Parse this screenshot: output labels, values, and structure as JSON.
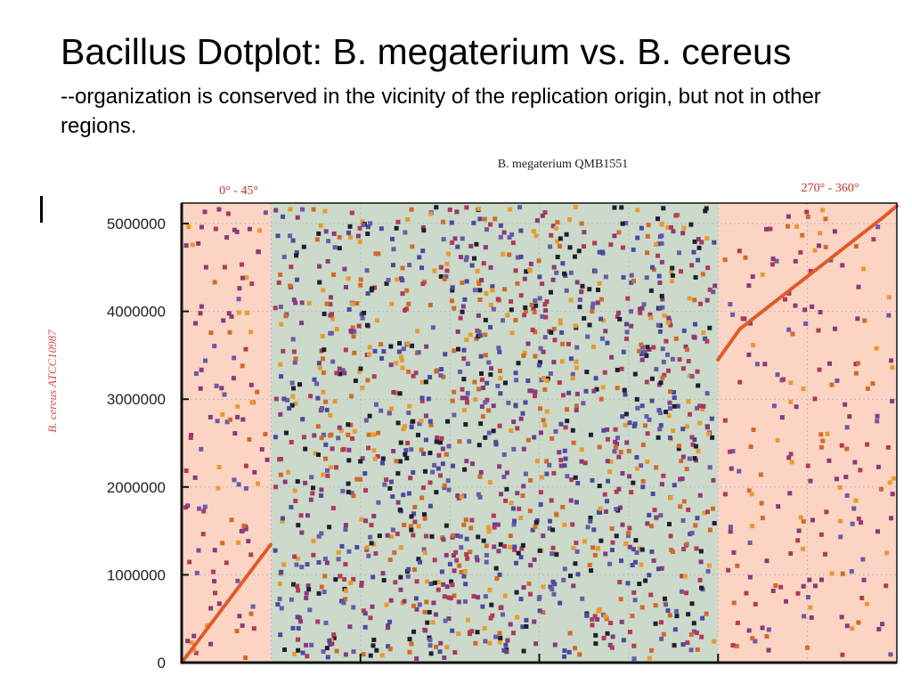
{
  "slide": {
    "title": "Bacillus Dotplot: B. megaterium vs. B. cereus",
    "subtitle": "--organization is conserved in the vicinity of the replication origin, but not in other regions."
  },
  "colors": {
    "conserved_band": "#fcd4c4",
    "variable_band": "#ccdacb",
    "diagonal": "#e05a2a",
    "region_label": "#c8322a",
    "ylabel": "#d04a4a",
    "dot_palette": [
      "#4a4aa0",
      "#6a5aa8",
      "#8a3a7a",
      "#b03a5a",
      "#d06a2a",
      "#e89a30",
      "#1e1e30"
    ]
  },
  "chart_data": {
    "type": "scatter",
    "title": "B. megaterium QMB1551",
    "xlabel": "",
    "ylabel": "B. cereus ATCC10987",
    "yticks": [
      0,
      1000000,
      2000000,
      3000000,
      4000000,
      5000000
    ],
    "ytick_labels": [
      "0",
      "1000000",
      "2000000",
      "3000000",
      "4000000",
      "5000000"
    ],
    "ylim": [
      0,
      5100000
    ],
    "x_unit": "degrees",
    "xlim": [
      0,
      360
    ],
    "regions": [
      {
        "label": "0° - 45°",
        "start": 0,
        "end": 45,
        "highlight": true
      },
      {
        "label": "",
        "start": 45,
        "end": 270,
        "highlight": false
      },
      {
        "label": "270° - 360°",
        "start": 270,
        "end": 360,
        "highlight": true
      }
    ],
    "series": [
      {
        "segments": [
          {
            "x": [
              0,
              45
            ],
            "y": [
              0,
              1350000
            ]
          },
          {
            "x": [
              270,
              281
            ],
            "y": [
              3450000,
              3800000
            ]
          },
          {
            "x": [
              281,
              352
            ],
            "y": [
              3800000,
              5050000
            ]
          },
          {
            "x": [
              352,
              360
            ],
            "y": [
              5050000,
              5200000
            ]
          }
        ]
      }
    ],
    "grid": true,
    "background_dots": "random"
  }
}
